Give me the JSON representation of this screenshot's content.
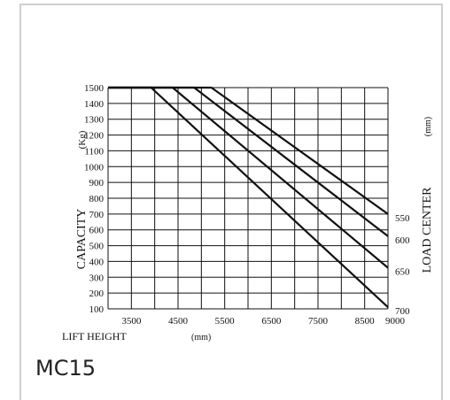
{
  "chart_data": {
    "type": "line",
    "ylabel": "CAPACITY",
    "y_unit": "(Kg)",
    "xlabel": "LIFT HEIGHT",
    "x_unit": "(mm)",
    "right_axis_label": "LOAD CENTER",
    "right_unit": "(mm)",
    "x_ticks": [
      "3500",
      "4500",
      "5500",
      "6500",
      "7500",
      "8500",
      "9000"
    ],
    "y_ticks": [
      "100",
      "200",
      "300",
      "400",
      "500",
      "600",
      "700",
      "800",
      "900",
      "1000",
      "1100",
      "1200",
      "1300",
      "1400",
      "1500"
    ],
    "xlim": [
      2500,
      9000
    ],
    "ylim": [
      100,
      1500
    ],
    "grid": true,
    "series": [
      {
        "name": "550",
        "x": [
          2500,
          4900,
          9000
        ],
        "y": [
          1500,
          1500,
          700
        ]
      },
      {
        "name": "600",
        "x": [
          2500,
          4500,
          9000
        ],
        "y": [
          1500,
          1500,
          560
        ]
      },
      {
        "name": "650",
        "x": [
          2500,
          4000,
          9000
        ],
        "y": [
          1500,
          1500,
          360
        ]
      },
      {
        "name": "700",
        "x": [
          2500,
          3500,
          9000
        ],
        "y": [
          1500,
          1500,
          110
        ]
      }
    ]
  },
  "model": "MC15"
}
